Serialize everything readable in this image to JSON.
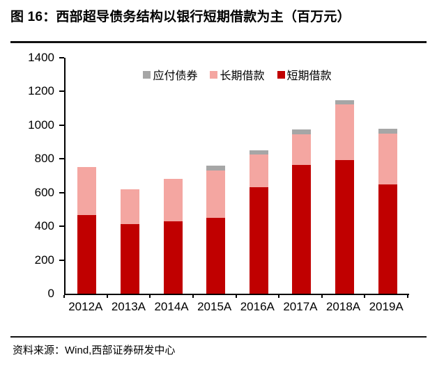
{
  "title": "图 16：西部超导债务结构以银行短期借款为主（百万元）",
  "source": "资料来源：Wind,西部证券研发中心",
  "chart_data": {
    "type": "bar",
    "stacked": true,
    "title": "图 16：西部超导债务结构以银行短期借款为主（百万元）",
    "unit": "百万元",
    "categories": [
      "2012A",
      "2013A",
      "2014A",
      "2015A",
      "2016A",
      "2017A",
      "2018A",
      "2019A"
    ],
    "series": [
      {
        "name": "短期借款",
        "color": "#c00000",
        "values": [
          465,
          415,
          430,
          450,
          630,
          765,
          795,
          650
        ]
      },
      {
        "name": "长期借款",
        "color": "#f4a6a1",
        "values": [
          285,
          205,
          250,
          280,
          195,
          180,
          330,
          300
        ]
      },
      {
        "name": "应付债券",
        "color": "#a6a6a6",
        "values": [
          0,
          0,
          0,
          30,
          25,
          30,
          25,
          30
        ]
      }
    ],
    "totals": [
      750,
      620,
      680,
      760,
      850,
      975,
      1150,
      980
    ],
    "xlabel": "",
    "ylabel": "",
    "ylim": [
      0,
      1400
    ],
    "ytick_step": 200,
    "ytick_labels": [
      "0",
      "200",
      "400",
      "600",
      "800",
      "1000",
      "1200",
      "1400"
    ],
    "grid": false,
    "legend_position": "top-center",
    "legend_order_note": "legend shows 应付债券, 长期借款, 短期借款 left to right; stack bottom-to-top is 短期借款, 长期借款, 应付债券"
  }
}
